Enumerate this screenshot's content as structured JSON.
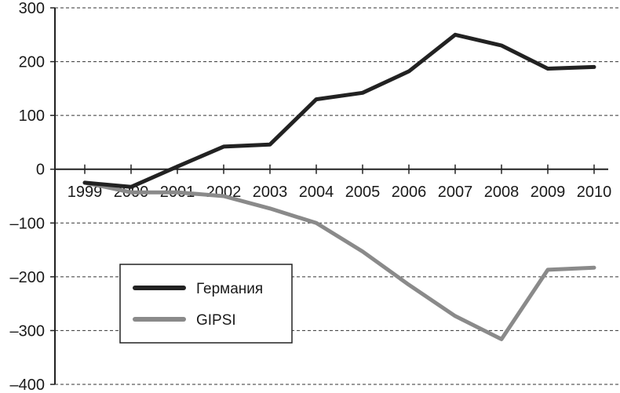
{
  "chart_data": {
    "type": "line",
    "title": "",
    "xlabel": "",
    "ylabel": "",
    "x": [
      "1999",
      "2000",
      "2001",
      "2002",
      "2003",
      "2004",
      "2005",
      "2006",
      "2007",
      "2008",
      "2009",
      "2010"
    ],
    "ylim": [
      -400,
      300
    ],
    "yticks": [
      300,
      200,
      100,
      0,
      -100,
      -200,
      -300,
      -400
    ],
    "ytick_labels": [
      "300",
      "200",
      "100",
      "0",
      "–100",
      "–200",
      "–300",
      "–400"
    ],
    "grid": "horizontal dashed",
    "legend_position": "bottom-left",
    "series": [
      {
        "name": "Германия",
        "color": "#222222",
        "values": [
          -25,
          -33,
          5,
          42,
          46,
          130,
          142,
          182,
          250,
          230,
          187,
          190
        ]
      },
      {
        "name": "GIPSI",
        "color": "#8a8a8a",
        "values": [
          -25,
          -43,
          -43,
          -50,
          -73,
          -100,
          -153,
          -215,
          -273,
          -316,
          -187,
          -183
        ]
      }
    ]
  }
}
